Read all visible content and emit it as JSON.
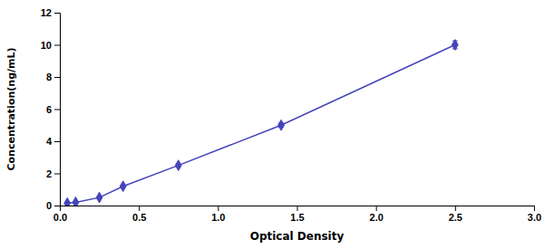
{
  "chart_data": {
    "type": "line",
    "xlabel": "Optical Density",
    "ylabel": "Concentration(ng/mL)",
    "x": [
      0.047,
      0.1,
      0.25,
      0.4,
      0.75,
      1.4,
      2.5
    ],
    "values": [
      0.15,
      0.2,
      0.5,
      1.2,
      2.5,
      5.0,
      10.0
    ],
    "errors": [
      0.00375,
      0.005,
      0.0125,
      0.03,
      0.0625,
      0.125,
      0.25
    ],
    "color": "#4444BB",
    "marker": "diamond",
    "xlim": [
      0,
      3
    ],
    "ylim": [
      0,
      12
    ],
    "xticks": [
      {
        "value": 0,
        "label": "0.0"
      },
      {
        "value": 0.5,
        "label": "0.5"
      },
      {
        "value": 1,
        "label": "1.0"
      },
      {
        "value": 1.5,
        "label": "1.5"
      },
      {
        "value": 2,
        "label": "2.0"
      },
      {
        "value": 2.5,
        "label": "2.5"
      },
      {
        "value": 3,
        "label": "3.0"
      }
    ],
    "yticks": [
      0,
      2,
      4,
      6,
      8,
      10,
      12
    ],
    "grid": false
  }
}
